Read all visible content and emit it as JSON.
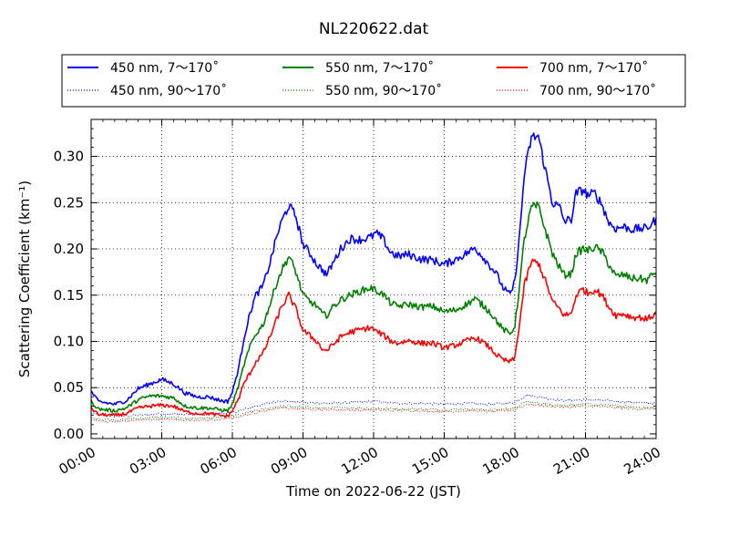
{
  "chart_data": {
    "type": "line",
    "title": "NL220622.dat",
    "xlabel": "Time on 2022-06-22 (JST)",
    "ylabel": "Scattering Coefficient (km⁻¹)",
    "xlim": [
      0,
      24
    ],
    "ylim": [
      -0.005,
      0.34
    ],
    "grid": true,
    "legend_position": "top",
    "x_tick_labels": [
      "00:00",
      "03:00",
      "06:00",
      "09:00",
      "12:00",
      "15:00",
      "18:00",
      "21:00",
      "24:00"
    ],
    "y_tick_labels": [
      "0.00",
      "0.05",
      "0.10",
      "0.15",
      "0.20",
      "0.25",
      "0.30"
    ],
    "series": [
      {
        "name": "450 nm, 7～170˚",
        "color": "#0000ff",
        "style": "solid",
        "x": [
          0,
          0.3,
          1,
          1.5,
          2,
          2.5,
          3,
          3.5,
          4,
          4.5,
          5,
          5.5,
          5.8,
          6,
          6.3,
          6.5,
          6.8,
          7,
          7.3,
          7.6,
          7.9,
          8.1,
          8.4,
          8.7,
          9,
          9.3,
          9.6,
          9.8,
          10,
          10.3,
          10.6,
          11,
          11.5,
          11.9,
          12.1,
          12.4,
          12.7,
          13,
          13.5,
          14,
          14.5,
          15,
          15.5,
          16,
          16.3,
          16.6,
          16.9,
          17.2,
          17.5,
          17.8,
          18,
          18.2,
          18.4,
          18.7,
          19,
          19.3,
          19.6,
          19.9,
          20.1,
          20.4,
          20.6,
          20.9,
          21.1,
          21.4,
          21.7,
          22,
          22.3,
          22.6,
          23,
          23.3,
          23.6,
          24
        ],
        "values": [
          0.046,
          0.035,
          0.032,
          0.036,
          0.049,
          0.054,
          0.059,
          0.054,
          0.044,
          0.04,
          0.04,
          0.036,
          0.035,
          0.045,
          0.075,
          0.105,
          0.135,
          0.15,
          0.16,
          0.185,
          0.215,
          0.23,
          0.247,
          0.235,
          0.205,
          0.195,
          0.183,
          0.178,
          0.172,
          0.186,
          0.2,
          0.211,
          0.21,
          0.213,
          0.217,
          0.211,
          0.197,
          0.192,
          0.194,
          0.189,
          0.188,
          0.183,
          0.189,
          0.196,
          0.201,
          0.193,
          0.183,
          0.174,
          0.158,
          0.15,
          0.165,
          0.215,
          0.28,
          0.32,
          0.322,
          0.285,
          0.25,
          0.245,
          0.23,
          0.232,
          0.26,
          0.264,
          0.258,
          0.26,
          0.248,
          0.228,
          0.222,
          0.224,
          0.221,
          0.222,
          0.222,
          0.232
        ]
      },
      {
        "name": "550 nm, 7～170˚",
        "color": "#008000",
        "style": "solid",
        "x": [
          0,
          0.3,
          1,
          1.5,
          2,
          2.5,
          3,
          3.5,
          4,
          4.5,
          5,
          5.5,
          5.8,
          6,
          6.3,
          6.5,
          6.8,
          7,
          7.3,
          7.6,
          7.9,
          8.1,
          8.4,
          8.7,
          9,
          9.3,
          9.6,
          9.8,
          10,
          10.3,
          10.6,
          11,
          11.5,
          11.9,
          12.1,
          12.4,
          12.7,
          13,
          13.5,
          14,
          14.5,
          15,
          15.5,
          16,
          16.3,
          16.6,
          16.9,
          17.2,
          17.5,
          17.8,
          18,
          18.2,
          18.4,
          18.7,
          19,
          19.3,
          19.6,
          19.9,
          20.1,
          20.4,
          20.6,
          20.9,
          21.1,
          21.4,
          21.7,
          22,
          22.3,
          22.6,
          23,
          23.3,
          23.6,
          24
        ],
        "values": [
          0.035,
          0.027,
          0.025,
          0.028,
          0.037,
          0.041,
          0.041,
          0.039,
          0.03,
          0.028,
          0.028,
          0.026,
          0.025,
          0.032,
          0.055,
          0.075,
          0.098,
          0.108,
          0.118,
          0.14,
          0.165,
          0.177,
          0.192,
          0.175,
          0.15,
          0.143,
          0.138,
          0.13,
          0.128,
          0.138,
          0.145,
          0.15,
          0.155,
          0.158,
          0.155,
          0.151,
          0.142,
          0.138,
          0.14,
          0.137,
          0.138,
          0.132,
          0.134,
          0.141,
          0.146,
          0.14,
          0.133,
          0.123,
          0.113,
          0.108,
          0.117,
          0.16,
          0.21,
          0.245,
          0.246,
          0.22,
          0.195,
          0.18,
          0.172,
          0.173,
          0.195,
          0.2,
          0.198,
          0.202,
          0.197,
          0.183,
          0.17,
          0.172,
          0.168,
          0.168,
          0.166,
          0.176
        ]
      },
      {
        "name": "700 nm, 7～170˚",
        "color": "#ff0000",
        "style": "solid",
        "x": [
          0,
          0.3,
          1,
          1.5,
          2,
          2.5,
          3,
          3.5,
          4,
          4.5,
          5,
          5.5,
          5.8,
          6,
          6.3,
          6.5,
          6.8,
          7,
          7.3,
          7.6,
          7.9,
          8.1,
          8.4,
          8.7,
          9,
          9.3,
          9.6,
          9.8,
          10,
          10.3,
          10.6,
          11,
          11.5,
          11.9,
          12.1,
          12.4,
          12.7,
          13,
          13.5,
          14,
          14.5,
          15,
          15.5,
          16,
          16.3,
          16.6,
          16.9,
          17.2,
          17.5,
          17.8,
          18,
          18.2,
          18.4,
          18.7,
          19,
          19.3,
          19.6,
          19.9,
          20.1,
          20.4,
          20.6,
          20.9,
          21.1,
          21.4,
          21.7,
          22,
          22.3,
          22.6,
          23,
          23.3,
          23.6,
          24
        ],
        "values": [
          0.028,
          0.021,
          0.02,
          0.022,
          0.028,
          0.03,
          0.031,
          0.03,
          0.024,
          0.022,
          0.022,
          0.02,
          0.019,
          0.025,
          0.04,
          0.055,
          0.068,
          0.078,
          0.087,
          0.105,
          0.125,
          0.138,
          0.15,
          0.135,
          0.112,
          0.106,
          0.1,
          0.092,
          0.09,
          0.097,
          0.105,
          0.11,
          0.113,
          0.115,
          0.111,
          0.107,
          0.101,
          0.098,
          0.101,
          0.098,
          0.098,
          0.093,
          0.096,
          0.101,
          0.104,
          0.1,
          0.094,
          0.086,
          0.08,
          0.078,
          0.082,
          0.12,
          0.16,
          0.186,
          0.185,
          0.165,
          0.143,
          0.135,
          0.128,
          0.13,
          0.15,
          0.157,
          0.152,
          0.156,
          0.15,
          0.137,
          0.128,
          0.13,
          0.126,
          0.126,
          0.124,
          0.13
        ]
      },
      {
        "name": "450 nm, 90～170˚",
        "color": "#0000ff",
        "style": "dotted",
        "x": [
          0,
          1,
          2,
          3,
          4,
          5,
          6,
          7,
          8,
          9,
          10,
          11,
          12,
          13,
          14,
          15,
          16,
          17,
          18,
          18.5,
          19,
          20,
          21,
          22,
          23,
          24
        ],
        "values": [
          0.022,
          0.019,
          0.02,
          0.022,
          0.021,
          0.021,
          0.023,
          0.03,
          0.036,
          0.034,
          0.033,
          0.034,
          0.035,
          0.033,
          0.033,
          0.032,
          0.033,
          0.032,
          0.034,
          0.042,
          0.04,
          0.036,
          0.037,
          0.036,
          0.034,
          0.033
        ]
      },
      {
        "name": "550 nm, 90～170˚",
        "color": "#008000",
        "style": "dotted",
        "x": [
          0,
          1,
          2,
          3,
          4,
          5,
          6,
          7,
          8,
          9,
          10,
          11,
          12,
          13,
          14,
          15,
          16,
          17,
          18,
          18.5,
          19,
          20,
          21,
          22,
          23,
          24
        ],
        "values": [
          0.017,
          0.015,
          0.017,
          0.018,
          0.017,
          0.017,
          0.019,
          0.025,
          0.03,
          0.029,
          0.028,
          0.028,
          0.028,
          0.027,
          0.027,
          0.026,
          0.027,
          0.026,
          0.028,
          0.035,
          0.033,
          0.031,
          0.032,
          0.031,
          0.029,
          0.028
        ]
      },
      {
        "name": "700 nm, 90～170˚",
        "color": "#ff0000",
        "style": "dotted",
        "x": [
          0,
          1,
          2,
          3,
          4,
          5,
          6,
          7,
          8,
          9,
          10,
          11,
          12,
          13,
          14,
          15,
          16,
          17,
          18,
          18.5,
          19,
          20,
          21,
          22,
          23,
          24
        ],
        "values": [
          0.015,
          0.013,
          0.015,
          0.016,
          0.015,
          0.015,
          0.017,
          0.023,
          0.028,
          0.027,
          0.026,
          0.026,
          0.026,
          0.025,
          0.025,
          0.024,
          0.025,
          0.024,
          0.026,
          0.032,
          0.031,
          0.029,
          0.03,
          0.029,
          0.027,
          0.027
        ]
      }
    ]
  }
}
